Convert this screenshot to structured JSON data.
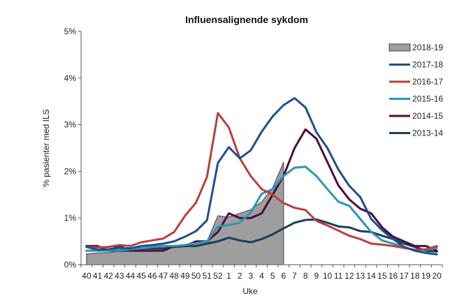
{
  "chart_data": {
    "type": "line",
    "title": "Influensalignende sykdom",
    "xlabel": "Uke",
    "ylabel": "% pasienter med ILS",
    "ylim": [
      0,
      5
    ],
    "yticks": [
      "0%",
      "1%",
      "2%",
      "3%",
      "4%",
      "5%"
    ],
    "categories": [
      "40",
      "41",
      "42",
      "43",
      "44",
      "45",
      "46",
      "47",
      "48",
      "49",
      "50",
      "51",
      "52",
      "1",
      "2",
      "3",
      "4",
      "5",
      "6",
      "7",
      "8",
      "9",
      "10",
      "11",
      "12",
      "13",
      "14",
      "15",
      "16",
      "17",
      "18",
      "19",
      "20"
    ],
    "grid": false,
    "legend_position": "right",
    "series": [
      {
        "name": "2018-19",
        "kind": "area",
        "color": "#9e9e9e",
        "values": [
          0.23,
          0.25,
          0.26,
          0.29,
          0.3,
          0.33,
          0.35,
          0.36,
          0.4,
          0.4,
          0.48,
          0.5,
          1.05,
          1.02,
          1.1,
          1.18,
          1.35,
          1.65,
          2.2,
          null,
          null,
          null,
          null,
          null,
          null,
          null,
          null,
          null,
          null,
          null,
          null,
          null,
          null
        ]
      },
      {
        "name": "2017-18",
        "kind": "line",
        "color": "#1f4e8c",
        "values": [
          0.38,
          0.32,
          0.33,
          0.36,
          0.35,
          0.4,
          0.42,
          0.45,
          0.5,
          0.6,
          0.72,
          0.95,
          2.18,
          2.52,
          2.28,
          2.45,
          2.85,
          3.18,
          3.42,
          3.57,
          3.37,
          2.84,
          2.5,
          2.04,
          1.69,
          1.45,
          0.98,
          0.74,
          0.55,
          0.38,
          0.3,
          0.25,
          0.22
        ]
      },
      {
        "name": "2016-17",
        "kind": "line",
        "color": "#b9403b",
        "values": [
          0.38,
          0.37,
          0.38,
          0.42,
          0.4,
          0.48,
          0.52,
          0.56,
          0.7,
          1.05,
          1.33,
          1.88,
          3.25,
          2.94,
          2.28,
          1.9,
          1.62,
          1.5,
          1.32,
          1.22,
          1.17,
          0.94,
          0.84,
          0.73,
          0.62,
          0.55,
          0.45,
          0.43,
          0.4,
          0.36,
          0.32,
          0.33,
          0.4
        ]
      },
      {
        "name": "2015-16",
        "kind": "line",
        "color": "#2a97b5",
        "values": [
          0.3,
          0.3,
          0.3,
          0.31,
          0.33,
          0.35,
          0.38,
          0.4,
          0.4,
          0.42,
          0.46,
          0.5,
          0.82,
          0.85,
          0.9,
          1.12,
          1.52,
          1.62,
          1.9,
          2.08,
          2.1,
          1.9,
          1.62,
          1.35,
          1.26,
          0.98,
          0.7,
          0.52,
          0.45,
          0.38,
          0.3,
          0.32,
          0.36
        ]
      },
      {
        "name": "2014-15",
        "kind": "line",
        "color": "#4b0d3d",
        "values": [
          0.4,
          0.4,
          0.3,
          0.4,
          0.3,
          0.3,
          0.3,
          0.3,
          0.4,
          0.4,
          0.5,
          0.5,
          0.7,
          1.1,
          1.0,
          1.0,
          1.1,
          1.5,
          1.9,
          2.5,
          2.9,
          2.7,
          2.2,
          1.7,
          1.4,
          1.2,
          1.1,
          0.8,
          0.6,
          0.5,
          0.4,
          0.4,
          0.3
        ]
      },
      {
        "name": "2013-14",
        "kind": "line",
        "color": "#17405a",
        "values": [
          0.3,
          0.3,
          0.3,
          0.3,
          0.3,
          0.35,
          0.35,
          0.35,
          0.38,
          0.4,
          0.4,
          0.45,
          0.5,
          0.58,
          0.52,
          0.48,
          0.55,
          0.65,
          0.78,
          0.9,
          0.96,
          0.97,
          0.9,
          0.82,
          0.8,
          0.72,
          0.7,
          0.62,
          0.55,
          0.45,
          0.38,
          0.3,
          0.28
        ]
      }
    ]
  }
}
